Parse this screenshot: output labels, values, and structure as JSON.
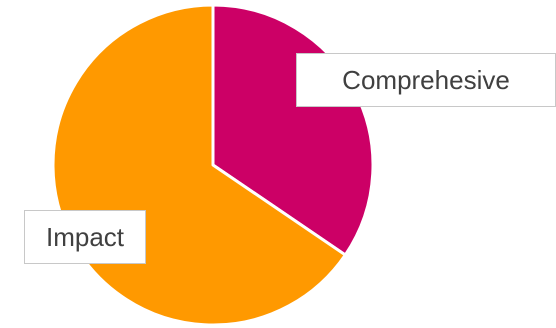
{
  "chart_data": {
    "type": "pie",
    "categories": [
      "Comprehesive",
      "Impact"
    ],
    "values": [
      34.5,
      65.5
    ],
    "start_angle_deg": 0,
    "direction": "clockwise",
    "colors": [
      "#cc0066",
      "#ff9900"
    ],
    "slice_border_color": "#ffffff",
    "labels": [
      "Comprehesive",
      "Impact"
    ]
  }
}
